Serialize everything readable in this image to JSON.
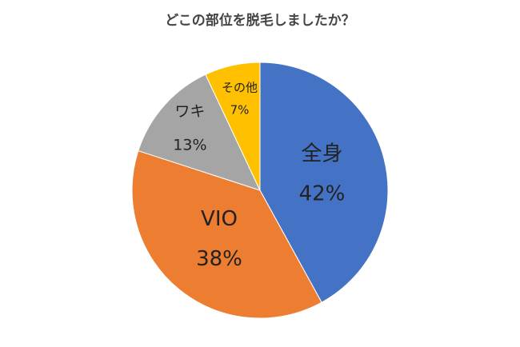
{
  "chart_data": {
    "type": "pie",
    "title": "どこの部位を脱毛しましたか？",
    "categories": [
      "全身",
      "VIO",
      "ワキ",
      "その他"
    ],
    "values": [
      42,
      38,
      13,
      7
    ],
    "value_labels": [
      "42%",
      "38%",
      "13%",
      "7%"
    ],
    "colors": [
      "#4472c4",
      "#ed7d31",
      "#a5a5a5",
      "#ffc000"
    ]
  }
}
